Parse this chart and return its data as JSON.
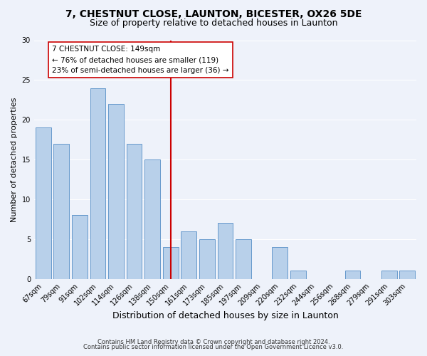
{
  "title": "7, CHESTNUT CLOSE, LAUNTON, BICESTER, OX26 5DE",
  "subtitle": "Size of property relative to detached houses in Launton",
  "xlabel": "Distribution of detached houses by size in Launton",
  "ylabel": "Number of detached properties",
  "bar_labels": [
    "67sqm",
    "79sqm",
    "91sqm",
    "102sqm",
    "114sqm",
    "126sqm",
    "138sqm",
    "150sqm",
    "161sqm",
    "173sqm",
    "185sqm",
    "197sqm",
    "209sqm",
    "220sqm",
    "232sqm",
    "244sqm",
    "256sqm",
    "268sqm",
    "279sqm",
    "291sqm",
    "303sqm"
  ],
  "bar_values": [
    19,
    17,
    8,
    24,
    22,
    17,
    15,
    4,
    6,
    5,
    7,
    5,
    0,
    4,
    1,
    0,
    0,
    1,
    0,
    1,
    1
  ],
  "bar_color": "#b8d0ea",
  "bar_edge_color": "#6699cc",
  "vline_color": "#cc0000",
  "annotation_title": "7 CHESTNUT CLOSE: 149sqm",
  "annotation_line1": "← 76% of detached houses are smaller (119)",
  "annotation_line2": "23% of semi-detached houses are larger (36) →",
  "annotation_box_color": "#ffffff",
  "annotation_box_edge": "#cc0000",
  "ylim": [
    0,
    30
  ],
  "yticks": [
    0,
    5,
    10,
    15,
    20,
    25,
    30
  ],
  "footer1": "Contains HM Land Registry data © Crown copyright and database right 2024.",
  "footer2": "Contains public sector information licensed under the Open Government Licence v3.0.",
  "background_color": "#eef2fa",
  "grid_color": "#ffffff",
  "title_fontsize": 10,
  "subtitle_fontsize": 9,
  "xlabel_fontsize": 9,
  "ylabel_fontsize": 8,
  "tick_fontsize": 7,
  "ann_fontsize": 7.5,
  "footer_fontsize": 6
}
